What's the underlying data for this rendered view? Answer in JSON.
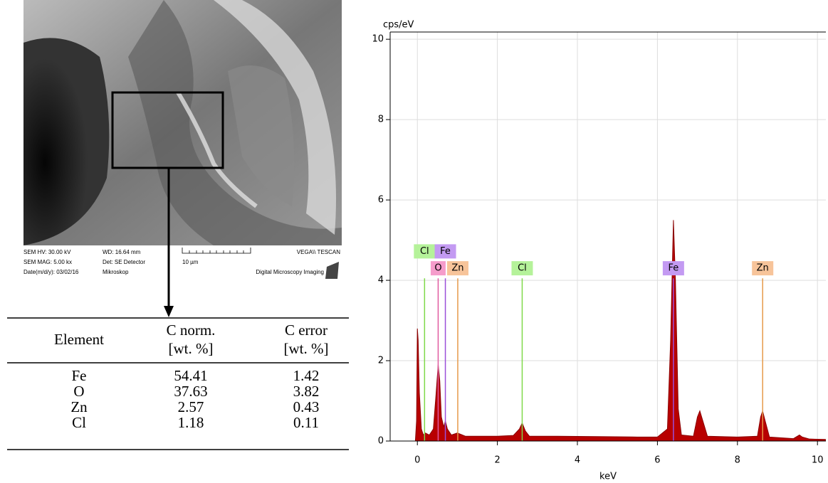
{
  "sem": {
    "hv": "SEM HV: 30.00 kV",
    "wd": "WD: 16.64 mm",
    "brand": "VEGA\\\\ TESCAN",
    "mag": "SEM MAG: 5.00 kx",
    "det": "Det: SE Detector",
    "scale": "10 µm",
    "date": "Date(m/d/y): 03/02/16",
    "lab": "Mikroskop",
    "footer": "Digital Microscopy Imaging"
  },
  "table": {
    "header": [
      "Element",
      "C norm.",
      "C error"
    ],
    "units": [
      "[wt. %]",
      "[wt. %]"
    ],
    "rows": [
      [
        "Fe",
        "54.41",
        "1.42"
      ],
      [
        "O",
        "37.63",
        "3.82"
      ],
      [
        "Zn",
        "2.57",
        "0.43"
      ],
      [
        "Cl",
        "1.18",
        "0.11"
      ]
    ]
  },
  "chart_data": {
    "type": "area",
    "ylabel": "cps/eV",
    "xlabel": "keV",
    "color": "#b80000",
    "xlim": [
      -0.68,
      10.21
    ],
    "ylim": [
      0,
      10.18
    ],
    "xticks": [
      0,
      2,
      4,
      6,
      8,
      10
    ],
    "yticks": [
      0,
      2,
      4,
      6,
      8,
      10
    ],
    "grid": true,
    "x": [
      -0.05,
      -0.02,
      0,
      0.02,
      0.05,
      0.1,
      0.15,
      0.2,
      0.3,
      0.4,
      0.47,
      0.52,
      0.56,
      0.6,
      0.66,
      0.7,
      0.75,
      0.85,
      1.0,
      1.2,
      1.5,
      2.0,
      2.4,
      2.55,
      2.62,
      2.7,
      2.8,
      3.5,
      4.5,
      5.5,
      6.0,
      6.25,
      6.33,
      6.4,
      6.45,
      6.52,
      6.6,
      6.9,
      7.0,
      7.06,
      7.12,
      7.25,
      8.0,
      8.5,
      8.58,
      8.63,
      8.68,
      8.8,
      9.4,
      9.55,
      9.62,
      9.8,
      10.2
    ],
    "values": [
      0,
      0.5,
      2.8,
      2.5,
      1.2,
      0.3,
      0.15,
      0.2,
      0.15,
      0.3,
      1.2,
      1.9,
      1.5,
      0.6,
      0.35,
      0.5,
      0.3,
      0.15,
      0.2,
      0.12,
      0.12,
      0.12,
      0.14,
      0.3,
      0.45,
      0.25,
      0.12,
      0.12,
      0.11,
      0.1,
      0.1,
      0.3,
      2.5,
      5.5,
      4.0,
      0.8,
      0.15,
      0.12,
      0.6,
      0.75,
      0.55,
      0.12,
      0.1,
      0.12,
      0.6,
      0.75,
      0.55,
      0.1,
      0.06,
      0.15,
      0.1,
      0.05,
      0.04
    ],
    "markers": [
      {
        "label": "Cl",
        "x": 0.18,
        "color": "#7fd94a",
        "fill": "#b5f29a"
      },
      {
        "label": "O",
        "x": 0.52,
        "color": "#e05aa0",
        "fill": "#f59ccb"
      },
      {
        "label": "Fe",
        "x": 0.7,
        "color": "#9b4fd9",
        "fill": "#c39af2"
      },
      {
        "label": "Zn",
        "x": 1.01,
        "color": "#e69a4a",
        "fill": "#f7c49a"
      },
      {
        "label": "Cl",
        "x": 2.62,
        "color": "#7fd94a",
        "fill": "#b5f29a"
      },
      {
        "label": "Fe",
        "x": 6.4,
        "color": "#9b4fd9",
        "fill": "#c39af2"
      },
      {
        "label": "Zn",
        "x": 8.63,
        "color": "#e69a4a",
        "fill": "#f7c49a"
      }
    ]
  }
}
